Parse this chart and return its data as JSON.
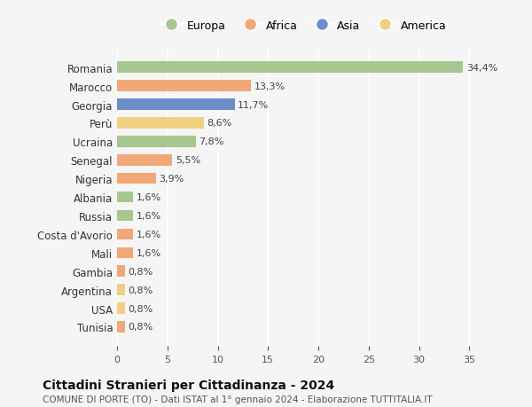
{
  "categories": [
    "Romania",
    "Marocco",
    "Georgia",
    "Perù",
    "Ucraina",
    "Senegal",
    "Nigeria",
    "Albania",
    "Russia",
    "Costa d'Avorio",
    "Mali",
    "Gambia",
    "Argentina",
    "USA",
    "Tunisia"
  ],
  "values": [
    34.4,
    13.3,
    11.7,
    8.6,
    7.8,
    5.5,
    3.9,
    1.6,
    1.6,
    1.6,
    1.6,
    0.8,
    0.8,
    0.8,
    0.8
  ],
  "labels": [
    "34,4%",
    "13,3%",
    "11,7%",
    "8,6%",
    "7,8%",
    "5,5%",
    "3,9%",
    "1,6%",
    "1,6%",
    "1,6%",
    "1,6%",
    "0,8%",
    "0,8%",
    "0,8%",
    "0,8%"
  ],
  "continents": [
    "Europa",
    "Africa",
    "Asia",
    "America",
    "Europa",
    "Africa",
    "Africa",
    "Europa",
    "Europa",
    "Africa",
    "Africa",
    "Africa",
    "America",
    "America",
    "Africa"
  ],
  "colors": {
    "Europa": "#a8c68f",
    "Africa": "#f0a878",
    "Asia": "#6a8fc8",
    "America": "#f0d080"
  },
  "legend_order": [
    "Europa",
    "Africa",
    "Asia",
    "America"
  ],
  "background_color": "#f5f5f5",
  "title": "Cittadini Stranieri per Cittadinanza - 2024",
  "subtitle": "COMUNE DI PORTE (TO) - Dati ISTAT al 1° gennaio 2024 - Elaborazione TUTTITALIA.IT",
  "xlim": [
    0,
    37
  ],
  "xticks": [
    0,
    5,
    10,
    15,
    20,
    25,
    30,
    35
  ]
}
